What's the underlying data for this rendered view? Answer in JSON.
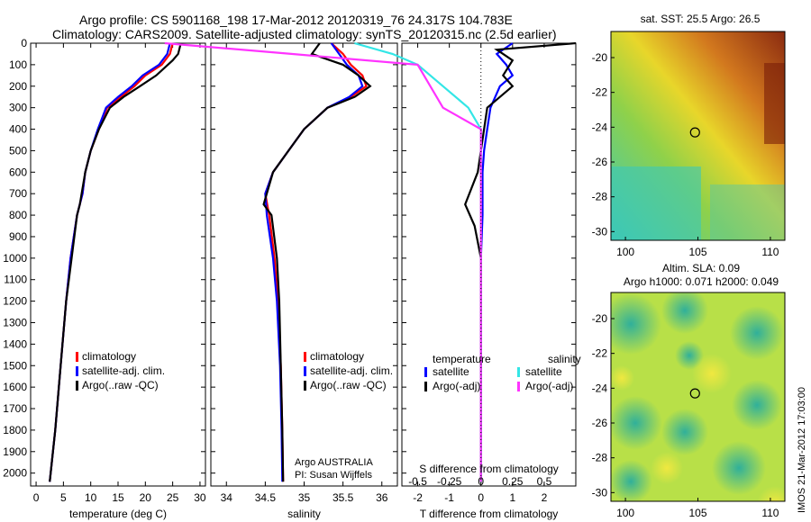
{
  "header": {
    "line1": "Argo profile: CS 5901168_198 17-Mar-2012 20120319_76 24.317S 104.783E",
    "line2": "Climatology: CARS2009. Satellite-adjusted climatology: synTS_20120315.nc (2.5d earlier)"
  },
  "colors": {
    "climatology": "#ff0000",
    "satellite": "#0000ff",
    "argo": "#000000",
    "satellite_s": "#33e6e6",
    "argo_s": "#ff33ff"
  },
  "chart_data": [
    {
      "type": "line",
      "xlabel": "temperature (deg C)",
      "ylabel": "",
      "xlim": [
        -1,
        31
      ],
      "ylim": [
        2060,
        0
      ],
      "xticks": [
        "0",
        "5",
        "10",
        "15",
        "20",
        "25",
        "30"
      ],
      "yticks": [
        "0",
        "100",
        "200",
        "300",
        "400",
        "500",
        "600",
        "700",
        "800",
        "900",
        "1000",
        "1100",
        "1200",
        "1300",
        "1400",
        "1500",
        "1600",
        "1700",
        "1800",
        "1900",
        "2000"
      ],
      "legend": [
        "climatology",
        "satellite-adj. clim.",
        "Argo(..raw -QC)"
      ],
      "legend_position": "lower-right",
      "series": [
        {
          "name": "climatology",
          "x": [
            25,
            24.5,
            23,
            20,
            18,
            15.5,
            13,
            11.5,
            10,
            9,
            8.5,
            7.5,
            6.3,
            5.5,
            4.5,
            3.5,
            2.5
          ],
          "y": [
            0,
            50,
            100,
            150,
            200,
            250,
            300,
            400,
            500,
            600,
            700,
            800,
            1000,
            1200,
            1500,
            1800,
            2040
          ]
        },
        {
          "name": "satellite-adj. clim.",
          "x": [
            24.5,
            24,
            22.5,
            19.5,
            17.5,
            15,
            12.8,
            11.3,
            10,
            9,
            8.5,
            7.5,
            6.3,
            5.5,
            4.5,
            3.5,
            2.5
          ],
          "y": [
            0,
            50,
            100,
            150,
            200,
            250,
            300,
            400,
            500,
            600,
            700,
            800,
            1000,
            1200,
            1500,
            1800,
            2040
          ]
        },
        {
          "name": "Argo(..raw -QC)",
          "x": [
            26.5,
            26,
            25,
            22,
            19,
            16,
            13.5,
            11.5,
            10,
            9,
            8,
            7.5,
            6.5,
            5.5,
            4.5,
            3.5,
            2.5
          ],
          "y": [
            0,
            50,
            80,
            150,
            200,
            250,
            300,
            400,
            500,
            600,
            750,
            800,
            1000,
            1200,
            1500,
            1800,
            2040
          ]
        }
      ]
    },
    {
      "type": "line",
      "xlabel": "salinity",
      "xlim": [
        33.8,
        36.2
      ],
      "ylim": [
        2060,
        0
      ],
      "xticks": [
        "34",
        "34.5",
        "35",
        "35.5",
        "36"
      ],
      "legend": [
        "climatology",
        "satellite-adj. clim.",
        "Argo(..raw -QC)"
      ],
      "legend_position": "lower-right",
      "annotation": [
        "Argo AUSTRALIA",
        "PI: Susan Wijffels"
      ],
      "series": [
        {
          "name": "climatology",
          "x": [
            35.35,
            35.5,
            35.6,
            35.75,
            35.8,
            35.6,
            35.3,
            35.0,
            34.8,
            34.6,
            34.5,
            34.55,
            34.62,
            34.66,
            34.7,
            34.72,
            34.73
          ],
          "y": [
            0,
            50,
            100,
            150,
            200,
            250,
            300,
            400,
            500,
            600,
            700,
            800,
            1000,
            1200,
            1500,
            1800,
            2040
          ]
        },
        {
          "name": "satellite-adj. clim.",
          "x": [
            35.35,
            35.45,
            35.55,
            35.7,
            35.75,
            35.58,
            35.3,
            35.0,
            34.8,
            34.6,
            34.5,
            34.52,
            34.6,
            34.65,
            34.69,
            34.71,
            34.72
          ],
          "y": [
            0,
            50,
            100,
            150,
            200,
            250,
            300,
            400,
            500,
            600,
            700,
            800,
            1000,
            1200,
            1500,
            1800,
            2040
          ]
        },
        {
          "name": "Argo(..raw -QC)",
          "x": [
            35.2,
            35.1,
            35.5,
            35.7,
            35.85,
            35.65,
            35.3,
            35.0,
            34.8,
            34.6,
            34.48,
            34.58,
            34.65,
            34.68,
            34.7,
            34.72,
            34.73
          ],
          "y": [
            0,
            50,
            100,
            150,
            200,
            250,
            300,
            400,
            500,
            600,
            750,
            800,
            1000,
            1200,
            1500,
            1800,
            2040
          ]
        }
      ]
    },
    {
      "type": "line",
      "xlabel": "T difference from climatology",
      "top_label": "S difference from climatology",
      "xlim": [
        -2.5,
        3
      ],
      "ylim": [
        2060,
        0
      ],
      "xticks": [
        "-2",
        "-1",
        "0",
        "1",
        "2"
      ],
      "top_ticks": [
        "-0.5",
        "-0.25",
        "0",
        "0.25",
        "0.5"
      ],
      "legend_groups": [
        "temperature",
        "salinity"
      ],
      "legend": [
        "satellite",
        "Argo(-adj)",
        "satellite",
        "Argo(-adj)"
      ],
      "series": [
        {
          "name": "satellite",
          "x": [
            1.0,
            0.5,
            0.8,
            1.0,
            0.6,
            0.3,
            0.2,
            0.1,
            0.05,
            0.05,
            0.05,
            0.0,
            0.0,
            0.0,
            0.0
          ],
          "y": [
            0,
            50,
            100,
            150,
            200,
            300,
            400,
            500,
            600,
            700,
            800,
            1000,
            1200,
            1500,
            2040
          ]
        },
        {
          "name": "Argo(-adj)",
          "x": [
            3.0,
            0.5,
            1.0,
            0.7,
            1.0,
            0.2,
            0.1,
            0.0,
            -0.1,
            -0.5,
            -0.2,
            0.0,
            0.0,
            0.0,
            0.0
          ],
          "y": [
            0,
            30,
            80,
            150,
            200,
            300,
            400,
            500,
            600,
            750,
            850,
            1000,
            1200,
            1500,
            2040
          ]
        },
        {
          "name": "satellite",
          "x": [
            -1.0,
            -0.7,
            -0.5,
            -0.3,
            -0.1,
            0.0,
            0.0,
            0.0,
            0.0,
            0.0,
            0.0
          ],
          "y": [
            0,
            50,
            100,
            200,
            300,
            400,
            600,
            800,
            1200,
            1600,
            2040
          ]
        },
        {
          "name": "Argo(-adj)",
          "x": [
            -2.5,
            -1.5,
            -0.5,
            -0.3,
            0.0,
            0.0,
            0.0,
            0.0,
            0.0,
            0.0,
            0.0
          ],
          "y": [
            0,
            50,
            100,
            300,
            400,
            600,
            800,
            1000,
            1200,
            1600,
            2040
          ]
        }
      ]
    },
    {
      "type": "heatmap",
      "title": "sat. SST: 25.5 Argo: 26.5",
      "xlim": [
        99,
        111
      ],
      "ylim": [
        -30.5,
        -18.5
      ],
      "xticks": [
        "100",
        "105",
        "110"
      ],
      "yticks": [
        "-20",
        "-22",
        "-24",
        "-26",
        "-28",
        "-30"
      ],
      "marker": {
        "lon": 104.8,
        "lat": -24.3
      }
    },
    {
      "type": "heatmap",
      "title": "Altim. SLA: 0.09",
      "subtitle": "Argo h1000: 0.071 h2000: 0.049",
      "xlim": [
        99,
        111
      ],
      "ylim": [
        -30.5,
        -18.5
      ],
      "xticks": [
        "100",
        "105",
        "110"
      ],
      "yticks": [
        "-20",
        "-22",
        "-24",
        "-26",
        "-28",
        "-30"
      ],
      "marker": {
        "lon": 104.8,
        "lat": -24.3
      }
    }
  ],
  "sidebar_stamp": "IMOS 21-Mar-2012 17:03:00"
}
